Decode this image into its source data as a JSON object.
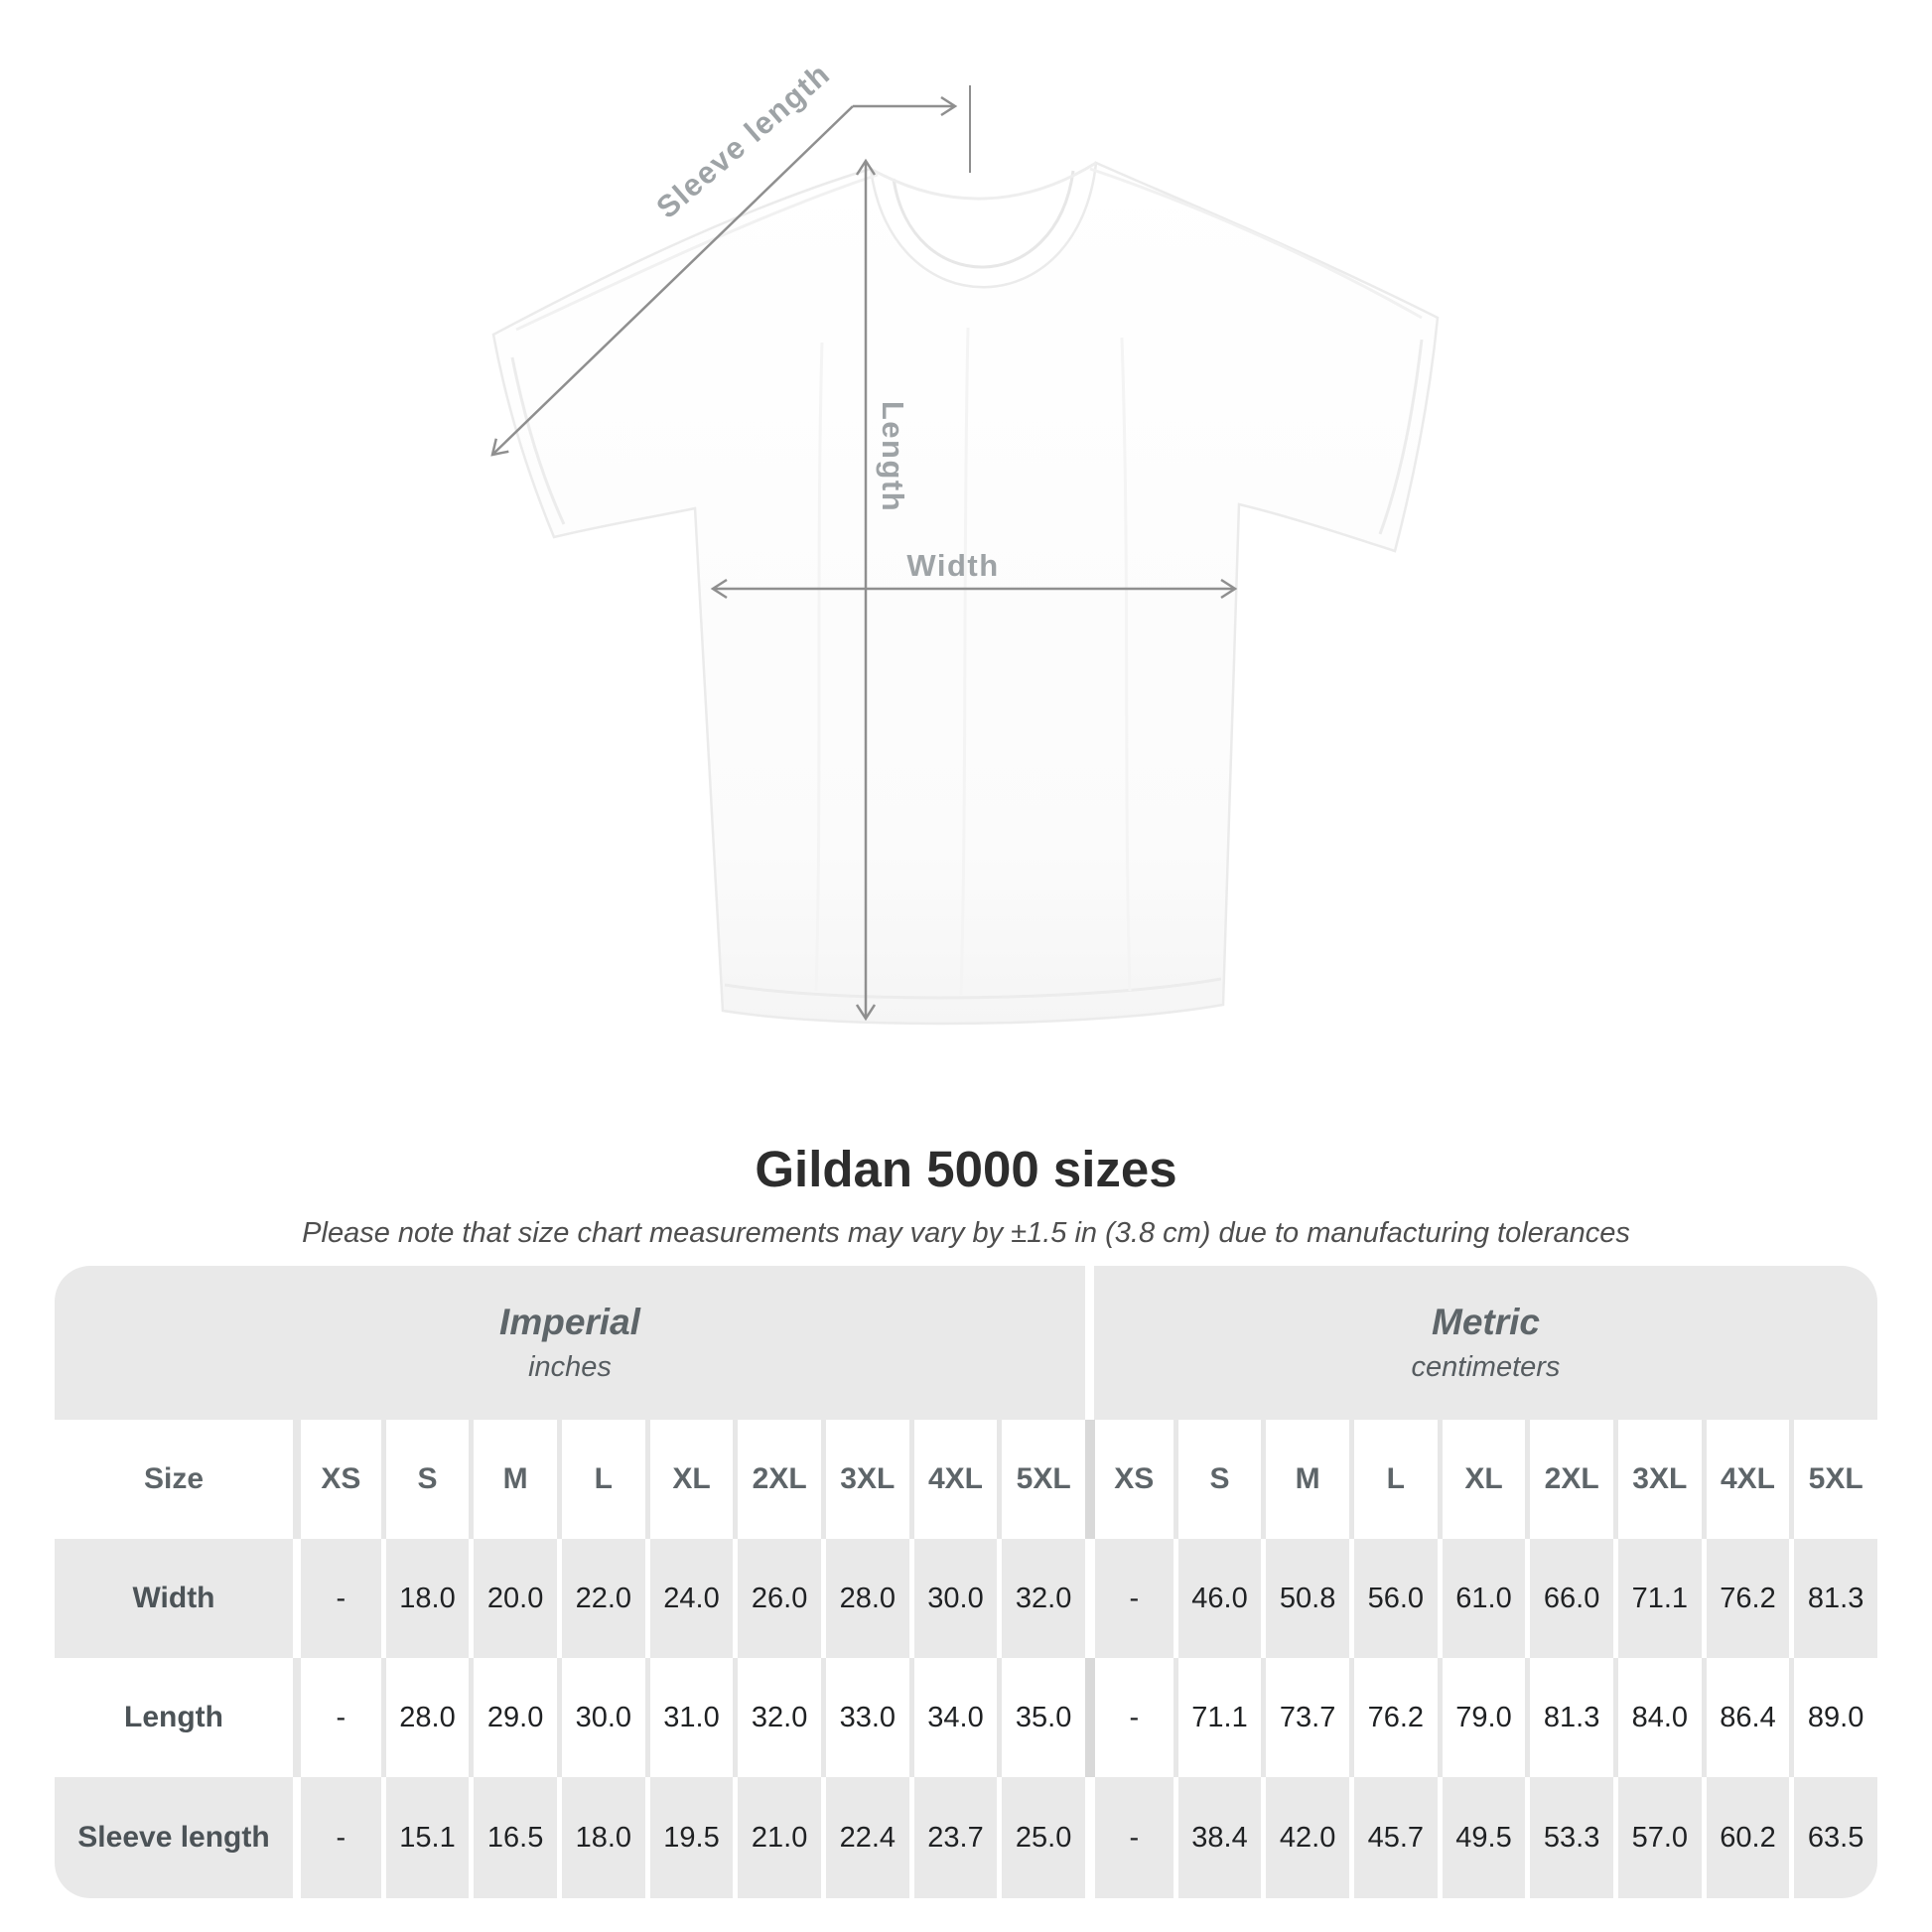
{
  "diagram": {
    "sleeve_length_label": "Sleeve length",
    "length_label": "Length",
    "width_label": "Width"
  },
  "title": "Gildan 5000 sizes",
  "subtitle": "Please note that size chart measurements may vary by ±1.5 in (3.8 cm) due to manufacturing tolerances",
  "table": {
    "size_header_label": "Size",
    "sections": [
      {
        "name": "Imperial",
        "unit": "inches"
      },
      {
        "name": "Metric",
        "unit": "centimeters"
      }
    ],
    "sizes": [
      "XS",
      "S",
      "M",
      "L",
      "XL",
      "2XL",
      "3XL",
      "4XL",
      "5XL"
    ],
    "rows": [
      {
        "label": "Width",
        "imperial": [
          "-",
          "18.0",
          "20.0",
          "22.0",
          "24.0",
          "26.0",
          "28.0",
          "30.0",
          "32.0"
        ],
        "metric": [
          "-",
          "46.0",
          "50.8",
          "56.0",
          "61.0",
          "66.0",
          "71.1",
          "76.2",
          "81.3"
        ]
      },
      {
        "label": "Length",
        "imperial": [
          "-",
          "28.0",
          "29.0",
          "30.0",
          "31.0",
          "32.0",
          "33.0",
          "34.0",
          "35.0"
        ],
        "metric": [
          "-",
          "71.1",
          "73.7",
          "76.2",
          "79.0",
          "81.3",
          "84.0",
          "86.4",
          "89.0"
        ]
      },
      {
        "label": "Sleeve length",
        "imperial": [
          "-",
          "15.1",
          "16.5",
          "18.0",
          "19.5",
          "21.0",
          "22.4",
          "23.7",
          "25.0"
        ],
        "metric": [
          "-",
          "38.4",
          "42.0",
          "45.7",
          "49.5",
          "53.3",
          "57.0",
          "60.2",
          "63.5"
        ]
      }
    ]
  },
  "colors": {
    "band_bg": "#e9e9e9",
    "arrow": "#8f8f8f",
    "diagram_label": "#9ea3a6",
    "header_text": "#5e6569",
    "unit_text": "#565c60",
    "value_text": "#1f2123",
    "label_text": "#4c5357",
    "title_color": "#2d2d2d",
    "subtitle_color": "#4e4e4e"
  }
}
